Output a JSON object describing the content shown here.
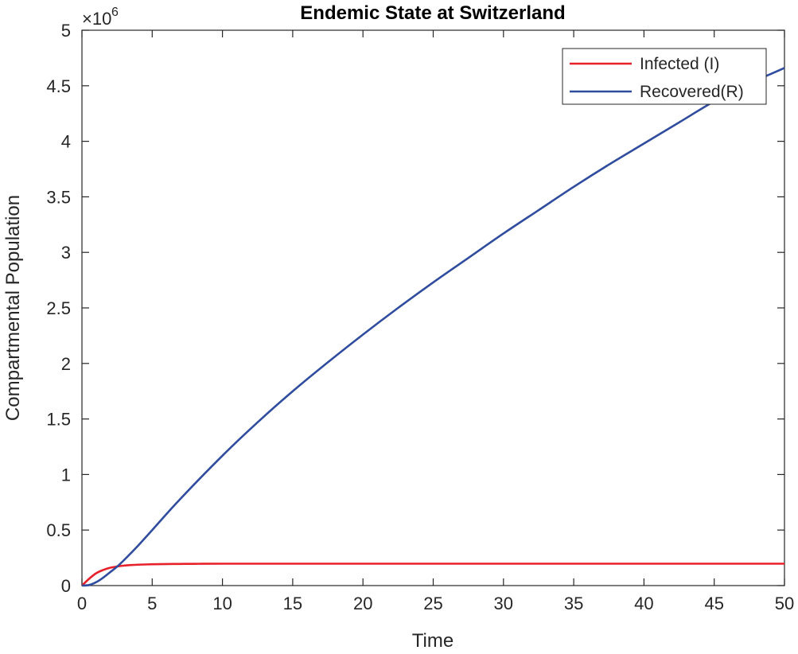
{
  "chart_data": {
    "type": "line",
    "title": "Endemic State at Switzerland",
    "xlabel": "Time",
    "ylabel": "Compartmental Population",
    "y_exponent_label": "×10",
    "y_exponent_power": "6",
    "xlim": [
      0,
      50
    ],
    "ylim": [
      0,
      5
    ],
    "x_ticks": [
      0,
      5,
      10,
      15,
      20,
      25,
      30,
      35,
      40,
      45,
      50
    ],
    "x_tick_labels": [
      "0",
      "5",
      "10",
      "15",
      "20",
      "25",
      "30",
      "35",
      "40",
      "45",
      "50"
    ],
    "y_ticks": [
      0,
      0.5,
      1,
      1.5,
      2,
      2.5,
      3,
      3.5,
      4,
      4.5,
      5
    ],
    "y_tick_labels": [
      "0",
      "0.5",
      "1",
      "1.5",
      "2",
      "2.5",
      "3",
      "3.5",
      "4",
      "4.5",
      "5"
    ],
    "grid": false,
    "legend_position": "top-right",
    "series": [
      {
        "name": "Infected (I)",
        "color": "#e8202a",
        "x": [
          0,
          0.5,
          1,
          1.5,
          2,
          2.5,
          3,
          3.5,
          4,
          5,
          6,
          7,
          8,
          10,
          15,
          20,
          25,
          30,
          35,
          40,
          45,
          50
        ],
        "y": [
          0,
          0.06,
          0.11,
          0.14,
          0.16,
          0.172,
          0.18,
          0.185,
          0.188,
          0.192,
          0.194,
          0.195,
          0.196,
          0.197,
          0.197,
          0.197,
          0.197,
          0.197,
          0.197,
          0.197,
          0.197,
          0.197
        ]
      },
      {
        "name": "Recovered(R)",
        "color": "#2f4c9e",
        "x": [
          0,
          0.5,
          1,
          1.5,
          2,
          2.5,
          3,
          4,
          5,
          7,
          10,
          12.5,
          15,
          17.5,
          20,
          22.5,
          25,
          27.5,
          30,
          32.5,
          35,
          37.5,
          40,
          42.5,
          45,
          47.5,
          50
        ],
        "y": [
          0,
          0.005,
          0.03,
          0.07,
          0.12,
          0.17,
          0.23,
          0.36,
          0.5,
          0.78,
          1.17,
          1.47,
          1.75,
          2.01,
          2.26,
          2.5,
          2.73,
          2.95,
          3.17,
          3.38,
          3.59,
          3.79,
          3.98,
          4.17,
          4.36,
          4.52,
          4.66
        ]
      }
    ]
  }
}
